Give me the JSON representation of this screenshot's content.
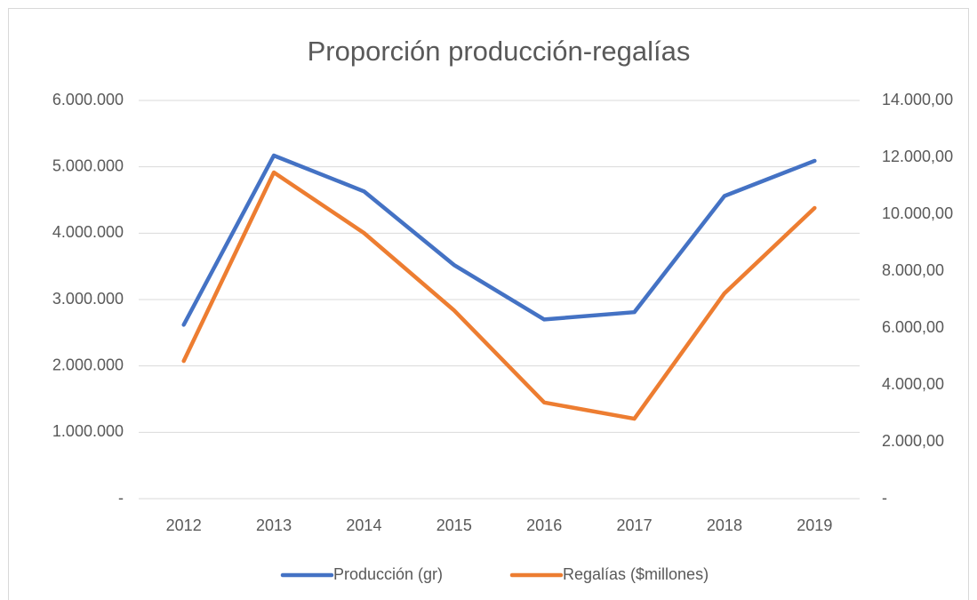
{
  "chart_data": {
    "type": "line",
    "title": "Proporción producción-regalías",
    "categories": [
      "2012",
      "2013",
      "2014",
      "2015",
      "2016",
      "2017",
      "2018",
      "2019"
    ],
    "series": [
      {
        "name": "Producción (gr)",
        "color": "#4472c4",
        "values": [
          2620000,
          5170000,
          4630000,
          3520000,
          2700000,
          2810000,
          4560000,
          5090000
        ]
      },
      {
        "name": "Regalías ($millones)",
        "color": "#ed7d31",
        "axis": "y2",
        "values": [
          4840,
          11470,
          9340,
          6620,
          3380,
          2810,
          7220,
          10220
        ]
      }
    ],
    "ylim": [
      0,
      6000000
    ],
    "yticks": [
      {
        "value": 0,
        "label": "-"
      },
      {
        "value": 1000000,
        "label": "1.000.000"
      },
      {
        "value": 2000000,
        "label": "2.000.000"
      },
      {
        "value": 3000000,
        "label": "3.000.000"
      },
      {
        "value": 4000000,
        "label": "4.000.000"
      },
      {
        "value": 5000000,
        "label": "5.000.000"
      },
      {
        "value": 6000000,
        "label": "6.000.000"
      }
    ],
    "y2lim": [
      0,
      14000
    ],
    "y2ticks": [
      {
        "value": 0,
        "label": "-"
      },
      {
        "value": 2000,
        "label": "2.000,00"
      },
      {
        "value": 4000,
        "label": "4.000,00"
      },
      {
        "value": 6000,
        "label": "6.000,00"
      },
      {
        "value": 8000,
        "label": "8.000,00"
      },
      {
        "value": 10000,
        "label": "10.000,00"
      },
      {
        "value": 12000,
        "label": "12.000,00"
      },
      {
        "value": 14000,
        "label": "14.000,00"
      }
    ],
    "grid": true,
    "legend": "bottom"
  }
}
